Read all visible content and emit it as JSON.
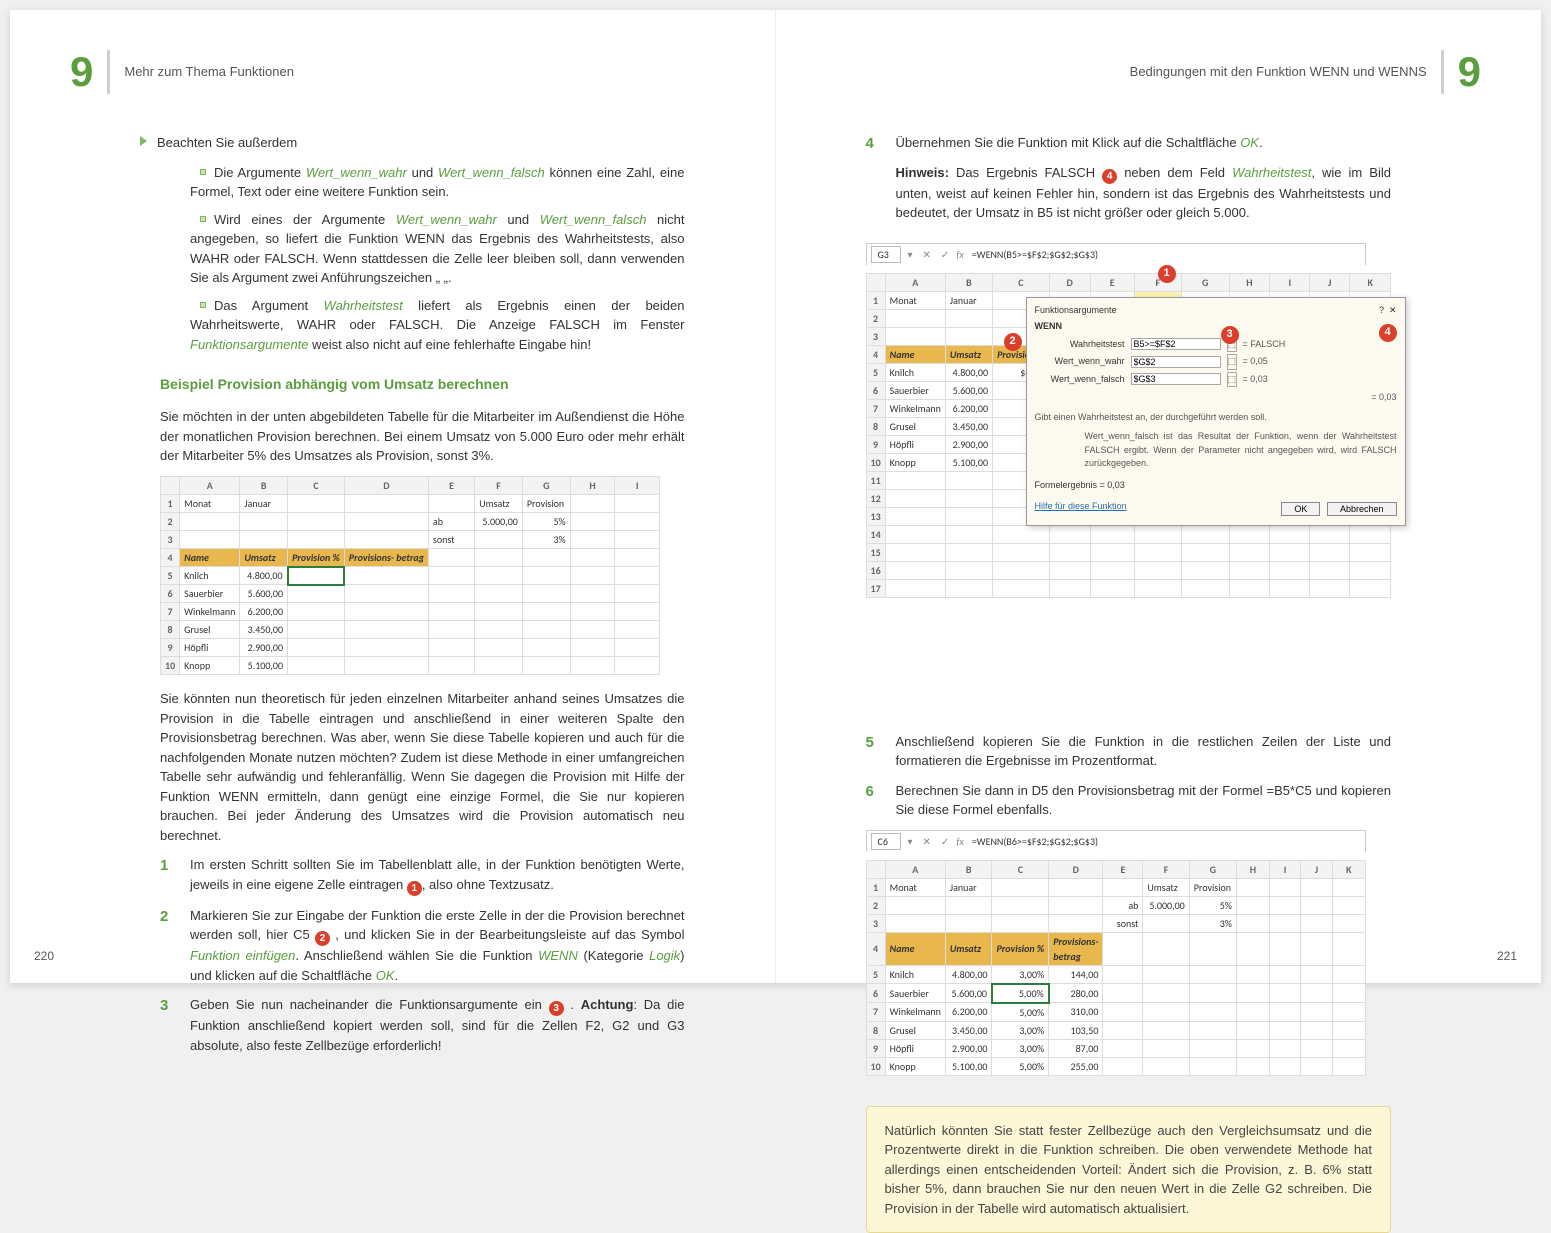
{
  "chapter_num": "9",
  "left": {
    "header": "Mehr zum Thema Funktionen",
    "pgnum": "220",
    "intro": "Beachten Sie außerdem",
    "bullet1a": "Die Argumente ",
    "bullet1b": " und ",
    "bullet1c": " können eine Zahl, eine Formel, Text oder eine weitere Funktion sein.",
    "arg_true": "Wert_wenn_wahr",
    "arg_false": "Wert_wenn_falsch",
    "bullet2": "Wird eines der Argumente ",
    "bullet2b": " nicht angegeben, so liefert die Funktion WENN das Ergebnis des Wahrheitstests, also WAHR oder FALSCH. Wenn stattdessen die Zelle leer bleiben soll, dann verwenden Sie als Argument zwei Anführungszeichen „ „.",
    "bullet3a": "Das Argument ",
    "bullet3b": " liefert als Ergebnis einen der beiden Wahrheitswerte, WAHR oder FALSCH. Die Anzeige FALSCH im Fenster ",
    "bullet3c": " weist also nicht auf eine fehlerhafte Eingabe hin!",
    "arg_test": "Wahrheitstest",
    "fnargs": "Funktionsargumente",
    "h2": "Beispiel Provision abhängig vom Umsatz berechnen",
    "p1": "Sie möchten in der unten abgebildeten Tabelle für die Mitarbeiter im Außendienst die Höhe der monatlichen Provision berechnen. Bei einem Umsatz von 5.000 Euro oder mehr erhält der Mitarbeiter 5% des Umsatzes als Provision, sonst 3%.",
    "p2": "Sie könnten nun theoretisch für jeden einzelnen Mitarbeiter anhand seines Umsatzes die Provision in die Tabelle eintragen und anschließend in einer weiteren Spalte den Provisionsbetrag berechnen. Was aber, wenn Sie diese Tabelle kopieren und auch für die nachfolgenden Monate nutzen möchten? Zudem ist diese Methode in einer umfangreichen Tabelle sehr aufwändig und fehleranfällig. Wenn Sie dagegen die Provision mit Hilfe der Funktion WENN ermitteln, dann genügt eine einzige Formel, die Sie nur kopieren brauchen. Bei jeder Änderung des Umsatzes wird die Provision automatisch neu berechnet.",
    "step1": "Im ersten Schritt sollten Sie im Tabellenblatt alle, in der Funktion benötigten Werte, jeweils in eine eigene Zelle eintragen ",
    "step1b": ", also ohne Textzusatz.",
    "step2a": "Markieren Sie zur Eingabe der Funktion die erste Zelle in der die Provision berechnet werden soll, hier C5 ",
    "step2b": " , und klicken Sie in der Bearbeitungsleiste auf das Symbol ",
    "fn_insert": "Funktion einfügen",
    "step2c": ". Anschließend wählen Sie die Funktion ",
    "fn_wenn": "WENN",
    "step2d": " (Kategorie ",
    "logik": "Logik",
    "step2e": ") und klicken auf die Schaltfläche ",
    "ok": "OK",
    "step3a": "Geben Sie nun nacheinander die Funktionsargumente ein ",
    "step3b": " . ",
    "achtung": "Achtung",
    "step3c": ": Da die Funktion anschließend kopiert werden soll, sind für die Zellen F2, G2 und G3 absolute, also feste Zellbezüge erforderlich!",
    "table1": {
      "cols": [
        "A",
        "B",
        "C",
        "D",
        "E",
        "F",
        "G",
        "H",
        "I"
      ],
      "r1": [
        "Monat",
        "Januar",
        "",
        "",
        "",
        "Umsatz",
        "Provision",
        "",
        ""
      ],
      "r2": [
        "",
        "",
        "",
        "",
        "ab",
        "5.000,00",
        "5%",
        "",
        ""
      ],
      "r3": [
        "",
        "",
        "",
        "",
        "sonst",
        "",
        "3%",
        "",
        ""
      ],
      "hd": [
        "Name",
        "Umsatz",
        "Provision %",
        "Provisions-\nbetrag"
      ],
      "names": [
        "Knilch",
        "Sauerbier",
        "Winkelmann",
        "Grusel",
        "Höpfli",
        "Knopp"
      ],
      "umsatz": [
        "4.800,00",
        "5.600,00",
        "6.200,00",
        "3.450,00",
        "2.900,00",
        "5.100,00"
      ]
    }
  },
  "right": {
    "header": "Bedingungen mit den Funktion WENN und WENNS",
    "pgnum": "221",
    "step4a": "Übernehmen Sie die Funktion mit Klick auf die Schaltfläche ",
    "hinweis": "Hinweis:",
    "step4b": " Das Ergebnis FALSCH ",
    "step4c": " neben dem Feld ",
    "step4d": ", wie im Bild unten, weist auf keinen Fehler hin, sondern ist das Ergebnis des Wahrheitstests und bedeutet, der Umsatz in B5 ist nicht größer oder gleich 5.000.",
    "step5": "Anschließend kopieren Sie die Funktion in die restlichen Zeilen der Liste und formatieren die Ergebnisse im Prozentformat.",
    "step6": "Berechnen Sie dann in D5 den Provisionsbetrag mit der Formel =B5*C5 und kopieren Sie diese Formel ebenfalls.",
    "callout": "Natürlich könnten Sie statt fester Zellbezüge auch den Vergleichsumsatz und die Prozentwerte direkt in die Funktion schreiben. Die oben verwendete Methode hat allerdings einen entscheidenden Vorteil: Ändert sich die Provision, z. B. 6% statt bisher 5%, dann brauchen Sie nur den neuen Wert in die Zelle  G2 schreiben. Die Provision in der Tabelle wird automatisch aktualisiert.",
    "fbar1": {
      "ref": "G3",
      "formula": "=WENN(B5>=$F$2;$G$2;$G$3)"
    },
    "fbar2": {
      "ref": "C6",
      "formula": "=WENN(B6>=$F$2;$G$2;$G$3)"
    },
    "dlg": {
      "title": "Funktionsargumente",
      "fn": "WENN",
      "rows": [
        {
          "lbl": "Wahrheitstest",
          "val": "B5>=$F$2",
          "res": "= FALSCH"
        },
        {
          "lbl": "Wert_wenn_wahr",
          "val": "$G$2",
          "res": "= 0,05"
        },
        {
          "lbl": "Wert_wenn_falsch",
          "val": "$G$3",
          "res": "= 0,03"
        }
      ],
      "result": "= 0,03",
      "desc1": "Gibt einen Wahrheitstest an, der durchgeführt werden soll.",
      "desc2": "Wert_wenn_falsch  ist das Resultat der Funktion, wenn der Wahrheitstest FALSCH ergibt. Wenn der Parameter nicht angegeben wird, wird FALSCH zurückgegeben.",
      "formres": "Formelergebnis =  0,03",
      "help": "Hilfe für diese Funktion",
      "ok": "OK",
      "cancel": "Abbrechen"
    },
    "table2": {
      "cols": [
        "A",
        "B",
        "C",
        "D",
        "E",
        "F",
        "G",
        "H",
        "I",
        "J",
        "K"
      ],
      "prov": [
        "3,00%",
        "5,00%",
        "5,00%",
        "3,00%",
        "3,00%",
        "5,00%"
      ],
      "betrag": [
        "144,00",
        "280,00",
        "310,00",
        "103,50",
        "87,00",
        "255,00"
      ]
    }
  }
}
